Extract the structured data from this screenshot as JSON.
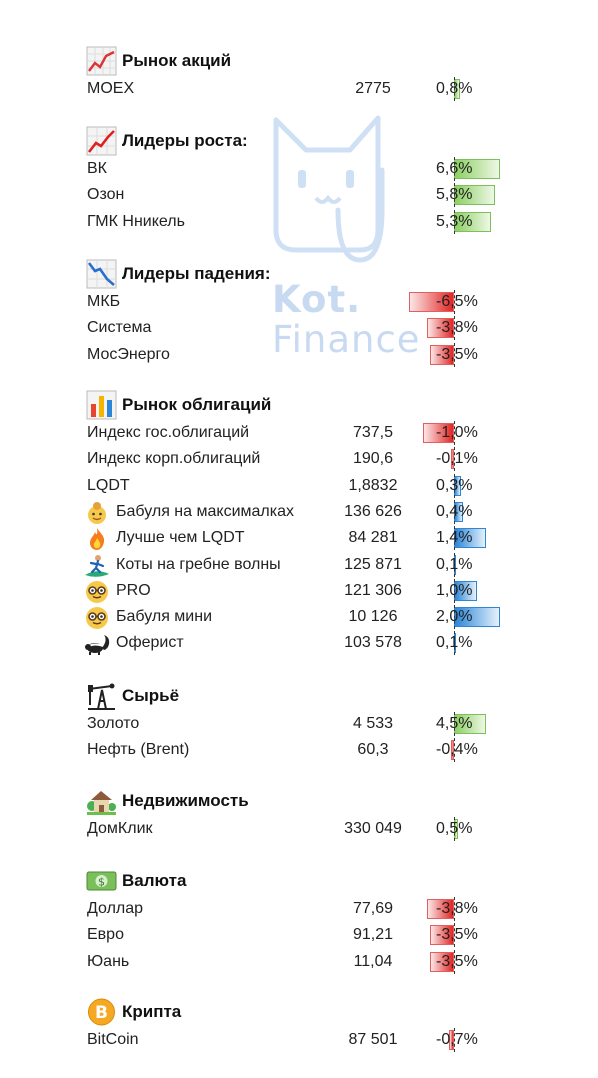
{
  "watermark": {
    "word1": "Kot.",
    "word2": "Finance"
  },
  "sections": [
    {
      "id": "stocks",
      "title": "Рынок акций",
      "icon": "stock-chart-icon",
      "rows": [
        {
          "name": "MOEX",
          "value": "2775",
          "pct_text": "0,8%",
          "pct": 0.8,
          "scale": "stocks"
        }
      ]
    },
    {
      "id": "gainers",
      "title": "Лидеры роста:",
      "icon": "chart-up-icon",
      "rows": [
        {
          "name": "ВК",
          "value": "",
          "pct_text": "6,6%",
          "pct": 6.6,
          "scale": "stocks"
        },
        {
          "name": "Озон",
          "value": "",
          "pct_text": "5,8%",
          "pct": 5.8,
          "scale": "stocks"
        },
        {
          "name": "ГМК Нникель",
          "value": "",
          "pct_text": "5,3%",
          "pct": 5.3,
          "scale": "stocks"
        }
      ]
    },
    {
      "id": "losers",
      "title": "Лидеры падения:",
      "icon": "chart-down-icon",
      "rows": [
        {
          "name": "МКБ",
          "value": "",
          "pct_text": "-6,5%",
          "pct": -6.5,
          "scale": "stocks"
        },
        {
          "name": "Система",
          "value": "",
          "pct_text": "-3,8%",
          "pct": -3.8,
          "scale": "stocks"
        },
        {
          "name": "МосЭнерго",
          "value": "",
          "pct_text": "-3,5%",
          "pct": -3.5,
          "scale": "stocks"
        }
      ]
    },
    {
      "id": "bonds",
      "title": "Рынок облигаций",
      "icon": "bar-chart-icon",
      "rows": [
        {
          "name": "Индекс гос.облигаций",
          "value": "737,5",
          "pct_text": "-1,0%",
          "pct": -1.0,
          "scale": "bondsRed"
        },
        {
          "name": "Индекс корп.облигаций",
          "value": "190,6",
          "pct_text": "-0,1%",
          "pct": -0.1,
          "scale": "bondsRed"
        },
        {
          "name": "LQDT",
          "value": "1,8832",
          "pct_text": "0,3%",
          "pct": 0.3,
          "scale": "bondsBlue"
        },
        {
          "name": "Бабуля на максималках",
          "value": "136 626",
          "pct_text": "0,4%",
          "pct": 0.4,
          "scale": "bondsBlue",
          "icon": "grandma-icon"
        },
        {
          "name": "Лучше чем LQDT",
          "value": "84 281",
          "pct_text": "1,4%",
          "pct": 1.4,
          "scale": "bondsBlue",
          "icon": "fire-icon"
        },
        {
          "name": "Коты на гребне волны",
          "value": "125 871",
          "pct_text": "0,1%",
          "pct": 0.1,
          "scale": "bondsBlue",
          "icon": "surfer-icon"
        },
        {
          "name": "PRO",
          "value": "121 306",
          "pct_text": "1,0%",
          "pct": 1.0,
          "scale": "bondsBlue",
          "icon": "nerd-face-icon"
        },
        {
          "name": "Бабуля мини",
          "value": "10 126",
          "pct_text": "2,0%",
          "pct": 2.0,
          "scale": "bondsBlue",
          "icon": "nerd-face-icon"
        },
        {
          "name": "Оферист",
          "value": "103 578",
          "pct_text": "0,1%",
          "pct": 0.1,
          "scale": "bondsBlue",
          "icon": "skunk-icon"
        }
      ]
    },
    {
      "id": "commodities",
      "title": "Сырьё",
      "icon": "oil-pump-icon",
      "rows": [
        {
          "name": "Золото",
          "value": "4 533",
          "pct_text": "4,5%",
          "pct": 4.5,
          "scale": "stocks"
        },
        {
          "name": "Нефть (Brent)",
          "value": "60,3",
          "pct_text": "-0,4%",
          "pct": -0.4,
          "scale": "stocks"
        }
      ]
    },
    {
      "id": "realestate",
      "title": "Недвижимость",
      "icon": "house-garden-icon",
      "rows": [
        {
          "name": "ДомКлик",
          "value": "330 049",
          "pct_text": "0,5%",
          "pct": 0.5,
          "scale": "stocks"
        }
      ]
    },
    {
      "id": "currency",
      "title": "Валюта",
      "icon": "banknote-icon",
      "rows": [
        {
          "name": "Доллар",
          "value": "77,69",
          "pct_text": "-3,8%",
          "pct": -3.8,
          "scale": "stocks"
        },
        {
          "name": "Евро",
          "value": "91,21",
          "pct_text": "-3,5%",
          "pct": -3.5,
          "scale": "stocks"
        },
        {
          "name": "Юань",
          "value": "11,04",
          "pct_text": "-3,5%",
          "pct": -3.5,
          "scale": "stocks"
        }
      ]
    },
    {
      "id": "crypto",
      "title": "Крипта",
      "icon": "bitcoin-icon",
      "rows": [
        {
          "name": "BitCoin",
          "value": "87 501",
          "pct_text": "-0,7%",
          "pct": -0.7,
          "scale": "stocks"
        }
      ]
    }
  ]
}
